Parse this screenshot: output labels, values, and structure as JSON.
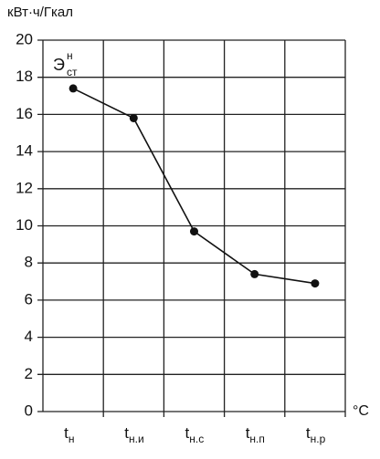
{
  "chart_data": {
    "type": "line",
    "y_label": "кВт·ч/Гкал",
    "x_unit": "°C",
    "annotation": {
      "base": "Э",
      "sup": "н",
      "sub": "ст"
    },
    "categories": [
      "tн",
      "tн.и",
      "tн.с",
      "tн.п",
      "tн.р"
    ],
    "values": [
      17.4,
      15.8,
      9.7,
      7.4,
      6.9
    ],
    "color": "#111111",
    "ylim": [
      0,
      20
    ],
    "yticks": [
      0,
      2,
      4,
      6,
      8,
      10,
      12,
      14,
      16,
      18,
      20
    ],
    "grid": true
  }
}
